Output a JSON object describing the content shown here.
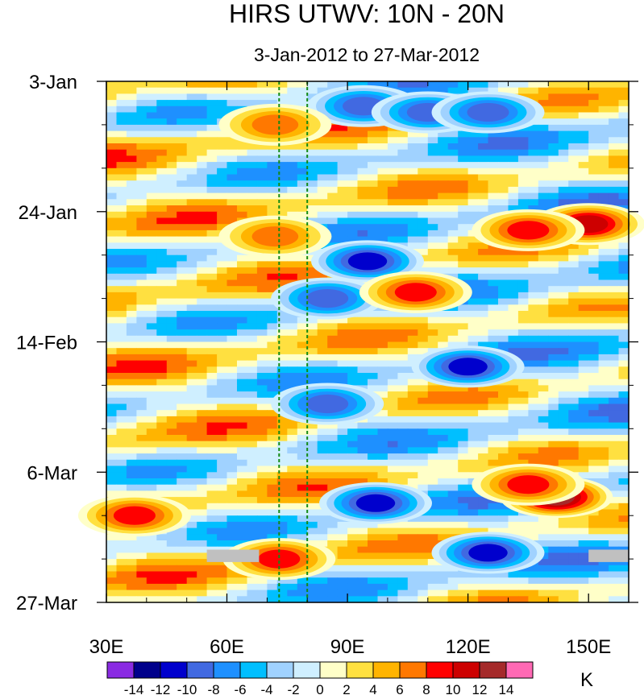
{
  "chart_data": {
    "type": "heatmap",
    "title": "HIRS UTWV: 10N - 20N",
    "subtitle": "3-Jan-2012 to 27-Mar-2012",
    "x_ticks": [
      {
        "value": 30,
        "label": "30E"
      },
      {
        "value": 60,
        "label": "60E"
      },
      {
        "value": 90,
        "label": "90E"
      },
      {
        "value": 120,
        "label": "120E"
      },
      {
        "value": 150,
        "label": "150E"
      }
    ],
    "xlim": [
      30,
      160
    ],
    "y_ticks": [
      {
        "value": 0,
        "label": "3-Jan"
      },
      {
        "value": 21,
        "label": "24-Jan"
      },
      {
        "value": 42,
        "label": "14-Feb"
      },
      {
        "value": 63,
        "label": "6-Mar"
      },
      {
        "value": 84,
        "label": "27-Mar"
      }
    ],
    "ylim": [
      0,
      84
    ],
    "reference_lines_lon": [
      73,
      80
    ],
    "colorbar": {
      "unit": "K",
      "levels": [
        -14,
        -12,
        -10,
        -8,
        -6,
        -4,
        -2,
        0,
        2,
        4,
        6,
        8,
        10,
        12,
        14
      ],
      "labels": [
        "-14",
        "-12",
        "-10",
        "-8",
        "-6",
        "-4",
        "-2",
        "0",
        "2",
        "4",
        "6",
        "8",
        "10",
        "12",
        "14"
      ],
      "colors": [
        "#8a2be2",
        "#00008b",
        "#0000cd",
        "#4169e1",
        "#1e90ff",
        "#00bfff",
        "#a0d2ff",
        "#cfefff",
        "#ffffc8",
        "#ffe040",
        "#ffb400",
        "#ff7800",
        "#ff0000",
        "#cd0000",
        "#a52a2a",
        "#ff69b4"
      ]
    },
    "missing_color": "#c0c0c0",
    "features": [
      {
        "lon": 94,
        "day": 4,
        "value": -10
      },
      {
        "lon": 110,
        "day": 5,
        "value": -10
      },
      {
        "lon": 125,
        "day": 5,
        "value": -10
      },
      {
        "lon": 72,
        "day": 7,
        "value": 8
      },
      {
        "lon": 150,
        "day": 23,
        "value": 12
      },
      {
        "lon": 135,
        "day": 24,
        "value": 10
      },
      {
        "lon": 72,
        "day": 25,
        "value": 8
      },
      {
        "lon": 95,
        "day": 29,
        "value": -12
      },
      {
        "lon": 85,
        "day": 35,
        "value": -10
      },
      {
        "lon": 107,
        "day": 34,
        "value": 10
      },
      {
        "lon": 120,
        "day": 46,
        "value": -12
      },
      {
        "lon": 85,
        "day": 52,
        "value": -10
      },
      {
        "lon": 142,
        "day": 67,
        "value": 14
      },
      {
        "lon": 135,
        "day": 65,
        "value": 10
      },
      {
        "lon": 97,
        "day": 68,
        "value": -12
      },
      {
        "lon": 125,
        "day": 76,
        "value": -12
      },
      {
        "lon": 73,
        "day": 77,
        "value": 10
      },
      {
        "lon": 37,
        "day": 70,
        "value": 10
      }
    ]
  }
}
